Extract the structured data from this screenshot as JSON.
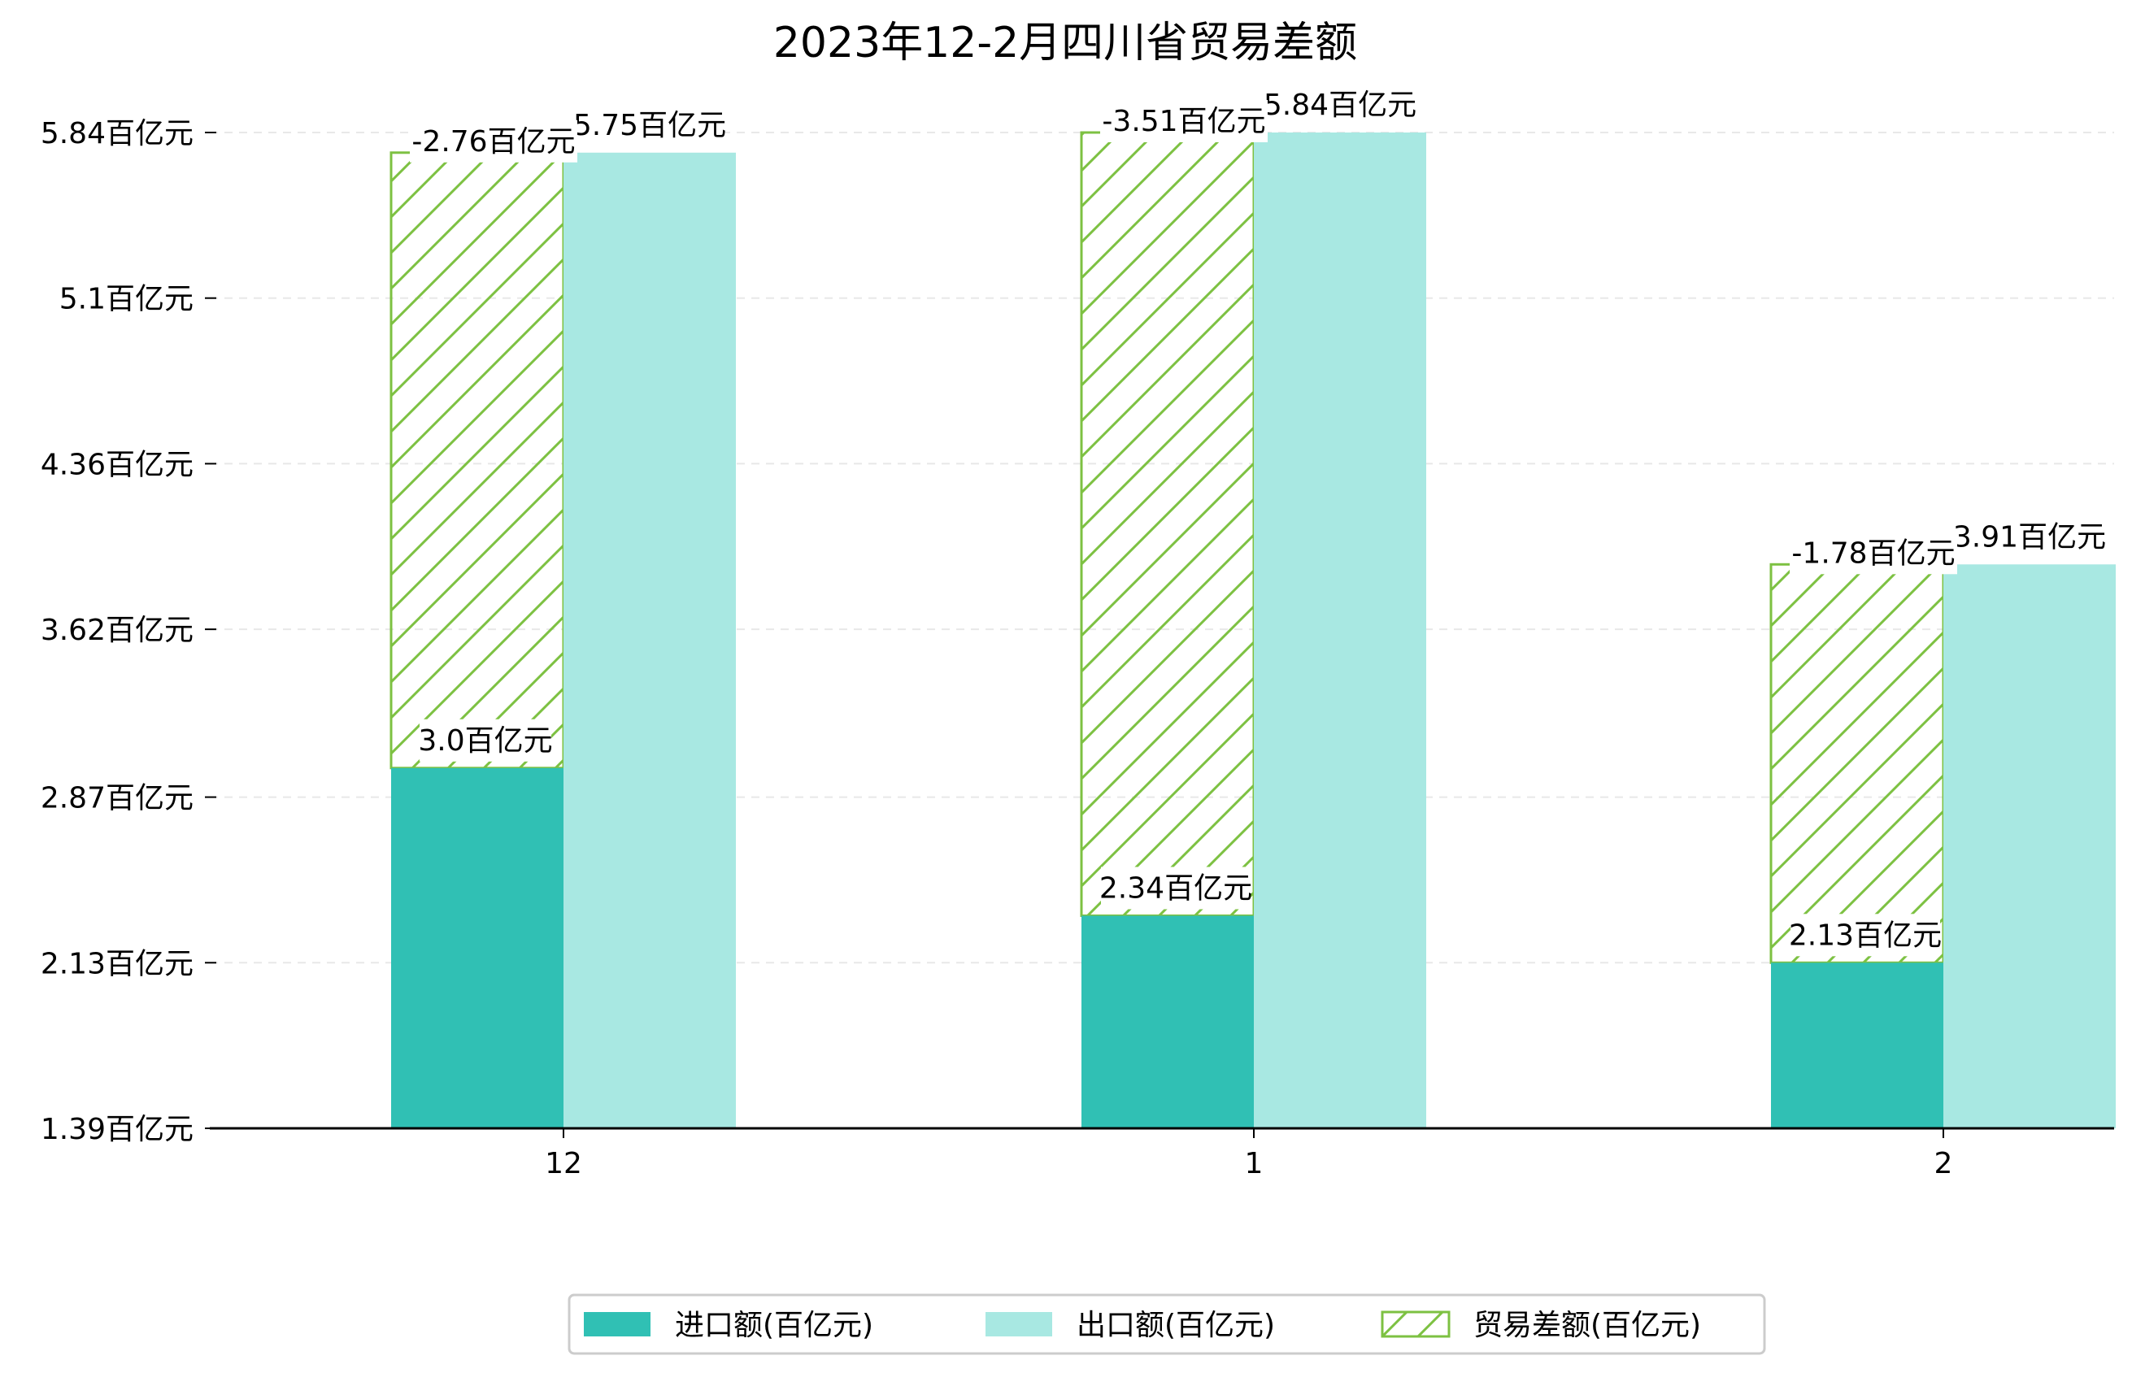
{
  "chart_data": {
    "type": "bar",
    "title": "2023年12-2月四川省贸易差额",
    "categories": [
      "12",
      "1",
      "2"
    ],
    "series": [
      {
        "name": "进口额(百亿元)",
        "values": [
          3.0,
          2.34,
          2.13
        ],
        "color": "#30c0b4",
        "labels": [
          "3.0百亿元",
          "2.34百亿元",
          "2.13百亿元"
        ]
      },
      {
        "name": "出口额(百亿元)",
        "values": [
          5.75,
          5.84,
          3.91
        ],
        "color": "#a8e8e2",
        "labels": [
          "5.75百亿元",
          "5.84百亿元",
          "3.91百亿元"
        ]
      },
      {
        "name": "贸易差额(百亿元)",
        "values": [
          -2.76,
          -3.51,
          -1.78
        ],
        "color": "#7dc142",
        "labels": [
          "-2.76百亿元",
          "-3.51百亿元",
          "-1.78百亿元"
        ]
      }
    ],
    "ylim": [
      1.39,
      5.84
    ],
    "yticks": [
      "1.39百亿元",
      "2.13百亿元",
      "2.87百亿元",
      "3.62百亿元",
      "4.36百亿元",
      "5.1百亿元",
      "5.84百亿元"
    ],
    "ytick_values": [
      1.39,
      2.13,
      2.87,
      3.62,
      4.36,
      5.1,
      5.84
    ],
    "grid": true,
    "legend_position": "bottom-center"
  }
}
